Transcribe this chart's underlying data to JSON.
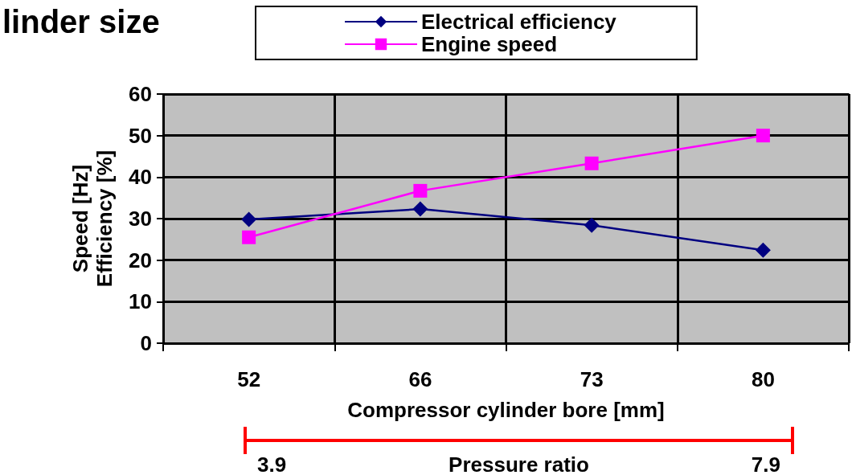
{
  "chart_data": {
    "type": "line",
    "title": "linder size",
    "xlabel": "Compressor cylinder bore [mm]",
    "ylabel": "Speed [Hz]\nEfficiency [%]",
    "categories": [
      "52",
      "66",
      "73",
      "80"
    ],
    "series": [
      {
        "name": "Electrical efficiency",
        "color": "#000080",
        "marker": "diamond",
        "values": [
          29.8,
          32.3,
          28.4,
          22.4
        ]
      },
      {
        "name": "Engine speed",
        "color": "#ff00ff",
        "marker": "square",
        "values": [
          25.5,
          36.7,
          43.3,
          50
        ]
      }
    ],
    "ylim": [
      0,
      60
    ],
    "yticks": [
      0,
      10,
      20,
      30,
      40,
      50,
      60
    ],
    "grid": true,
    "legend": "top",
    "annotations": [
      "3.9",
      "Pressure ratio",
      "7.9"
    ]
  }
}
